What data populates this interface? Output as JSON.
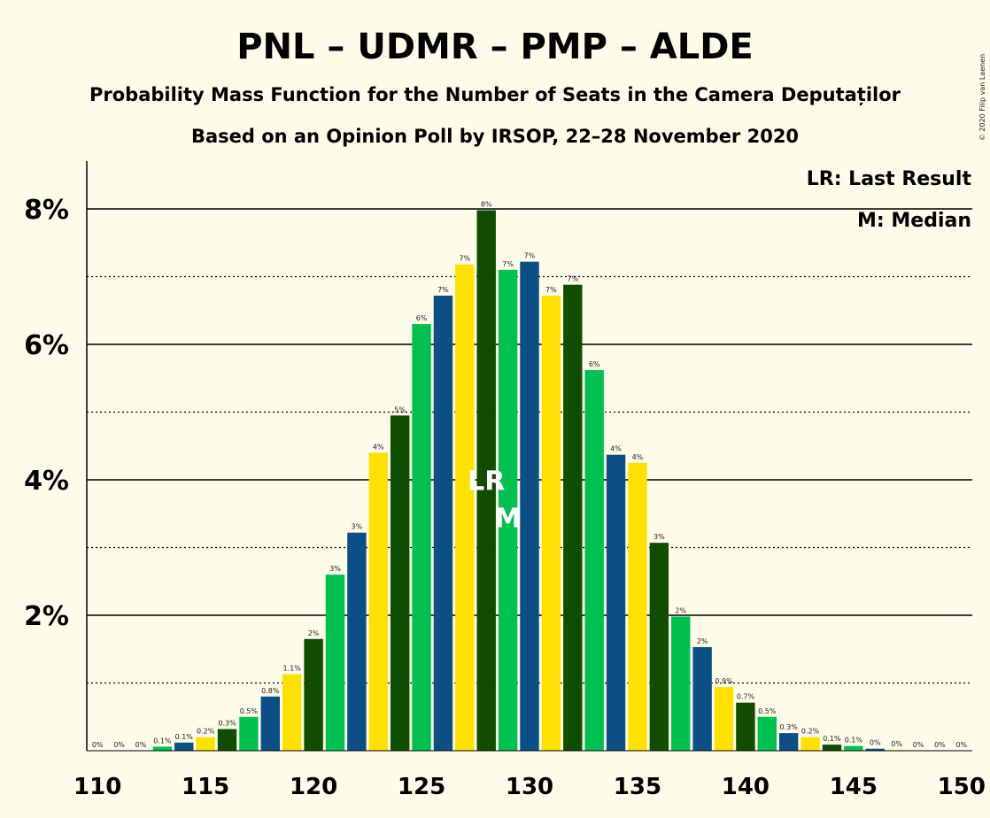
{
  "title": "PNL – UDMR – PMP – ALDE",
  "subtitle1": "Probability Mass Function for the Number of Seats in the Camera Deputaților",
  "subtitle2": "Based on an Opinion Poll by IRSOP, 22–28 November 2020",
  "copyright": "© 2020 Filip van Laenen",
  "legend": {
    "lr": "LR: Last Result",
    "m": "M: Median"
  },
  "colors": {
    "background": "#fefbe8",
    "blue": "#0b4f84",
    "yellow": "#ffe100",
    "dark_green": "#114d00",
    "green": "#00c150"
  },
  "chart_data": {
    "type": "bar",
    "x": [
      110,
      111,
      112,
      113,
      114,
      115,
      116,
      117,
      118,
      119,
      120,
      121,
      122,
      123,
      124,
      125,
      126,
      127,
      128,
      129,
      130,
      131,
      132,
      133,
      134,
      135,
      136,
      137,
      138,
      139,
      140,
      141,
      142,
      143,
      144,
      145,
      146,
      147,
      148,
      149,
      150
    ],
    "values": [
      0,
      0,
      0,
      0.06,
      0.12,
      0.2,
      0.32,
      0.5,
      0.8,
      1.13,
      1.65,
      2.6,
      3.22,
      4.4,
      4.95,
      6.3,
      6.72,
      7.18,
      7.98,
      7.1,
      7.22,
      6.72,
      6.88,
      5.62,
      4.37,
      4.25,
      3.07,
      1.98,
      1.53,
      0.94,
      0.71,
      0.5,
      0.26,
      0.2,
      0.09,
      0.07,
      0.03,
      0.01,
      0,
      0,
      0
    ],
    "labels": [
      "0%",
      "0%",
      "0%",
      "0.1%",
      "0.1%",
      "0.2%",
      "0.3%",
      "0.5%",
      "0.8%",
      "1.1%",
      "2%",
      "3%",
      "3%",
      "4%",
      "5%",
      "6%",
      "7%",
      "7%",
      "8%",
      "7%",
      "7%",
      "7%",
      "7%",
      "6%",
      "4%",
      "4%",
      "3%",
      "2%",
      "2%",
      "0.9%",
      "0.7%",
      "0.5%",
      "0.3%",
      "0.2%",
      "0.1%",
      "0.1%",
      "0%",
      "0%",
      "0%",
      "0%",
      "0%"
    ],
    "ylim": [
      0,
      8.7
    ],
    "y_ticks": [
      0,
      2,
      4,
      6,
      8
    ],
    "y_tick_labels": [
      "",
      "2%",
      "4%",
      "6%",
      "8%"
    ],
    "x_ticks": [
      110,
      115,
      120,
      125,
      130,
      135,
      140,
      145,
      150
    ],
    "x_tick_labels": [
      "110",
      "115",
      "120",
      "125",
      "130",
      "135",
      "140",
      "145",
      "150"
    ],
    "last_result": 128,
    "last_result_label": "LR",
    "median": 129,
    "median_label": "M",
    "grid": "solid at labelled ticks, dotted at odd percentages",
    "legend_position": "top-right"
  }
}
